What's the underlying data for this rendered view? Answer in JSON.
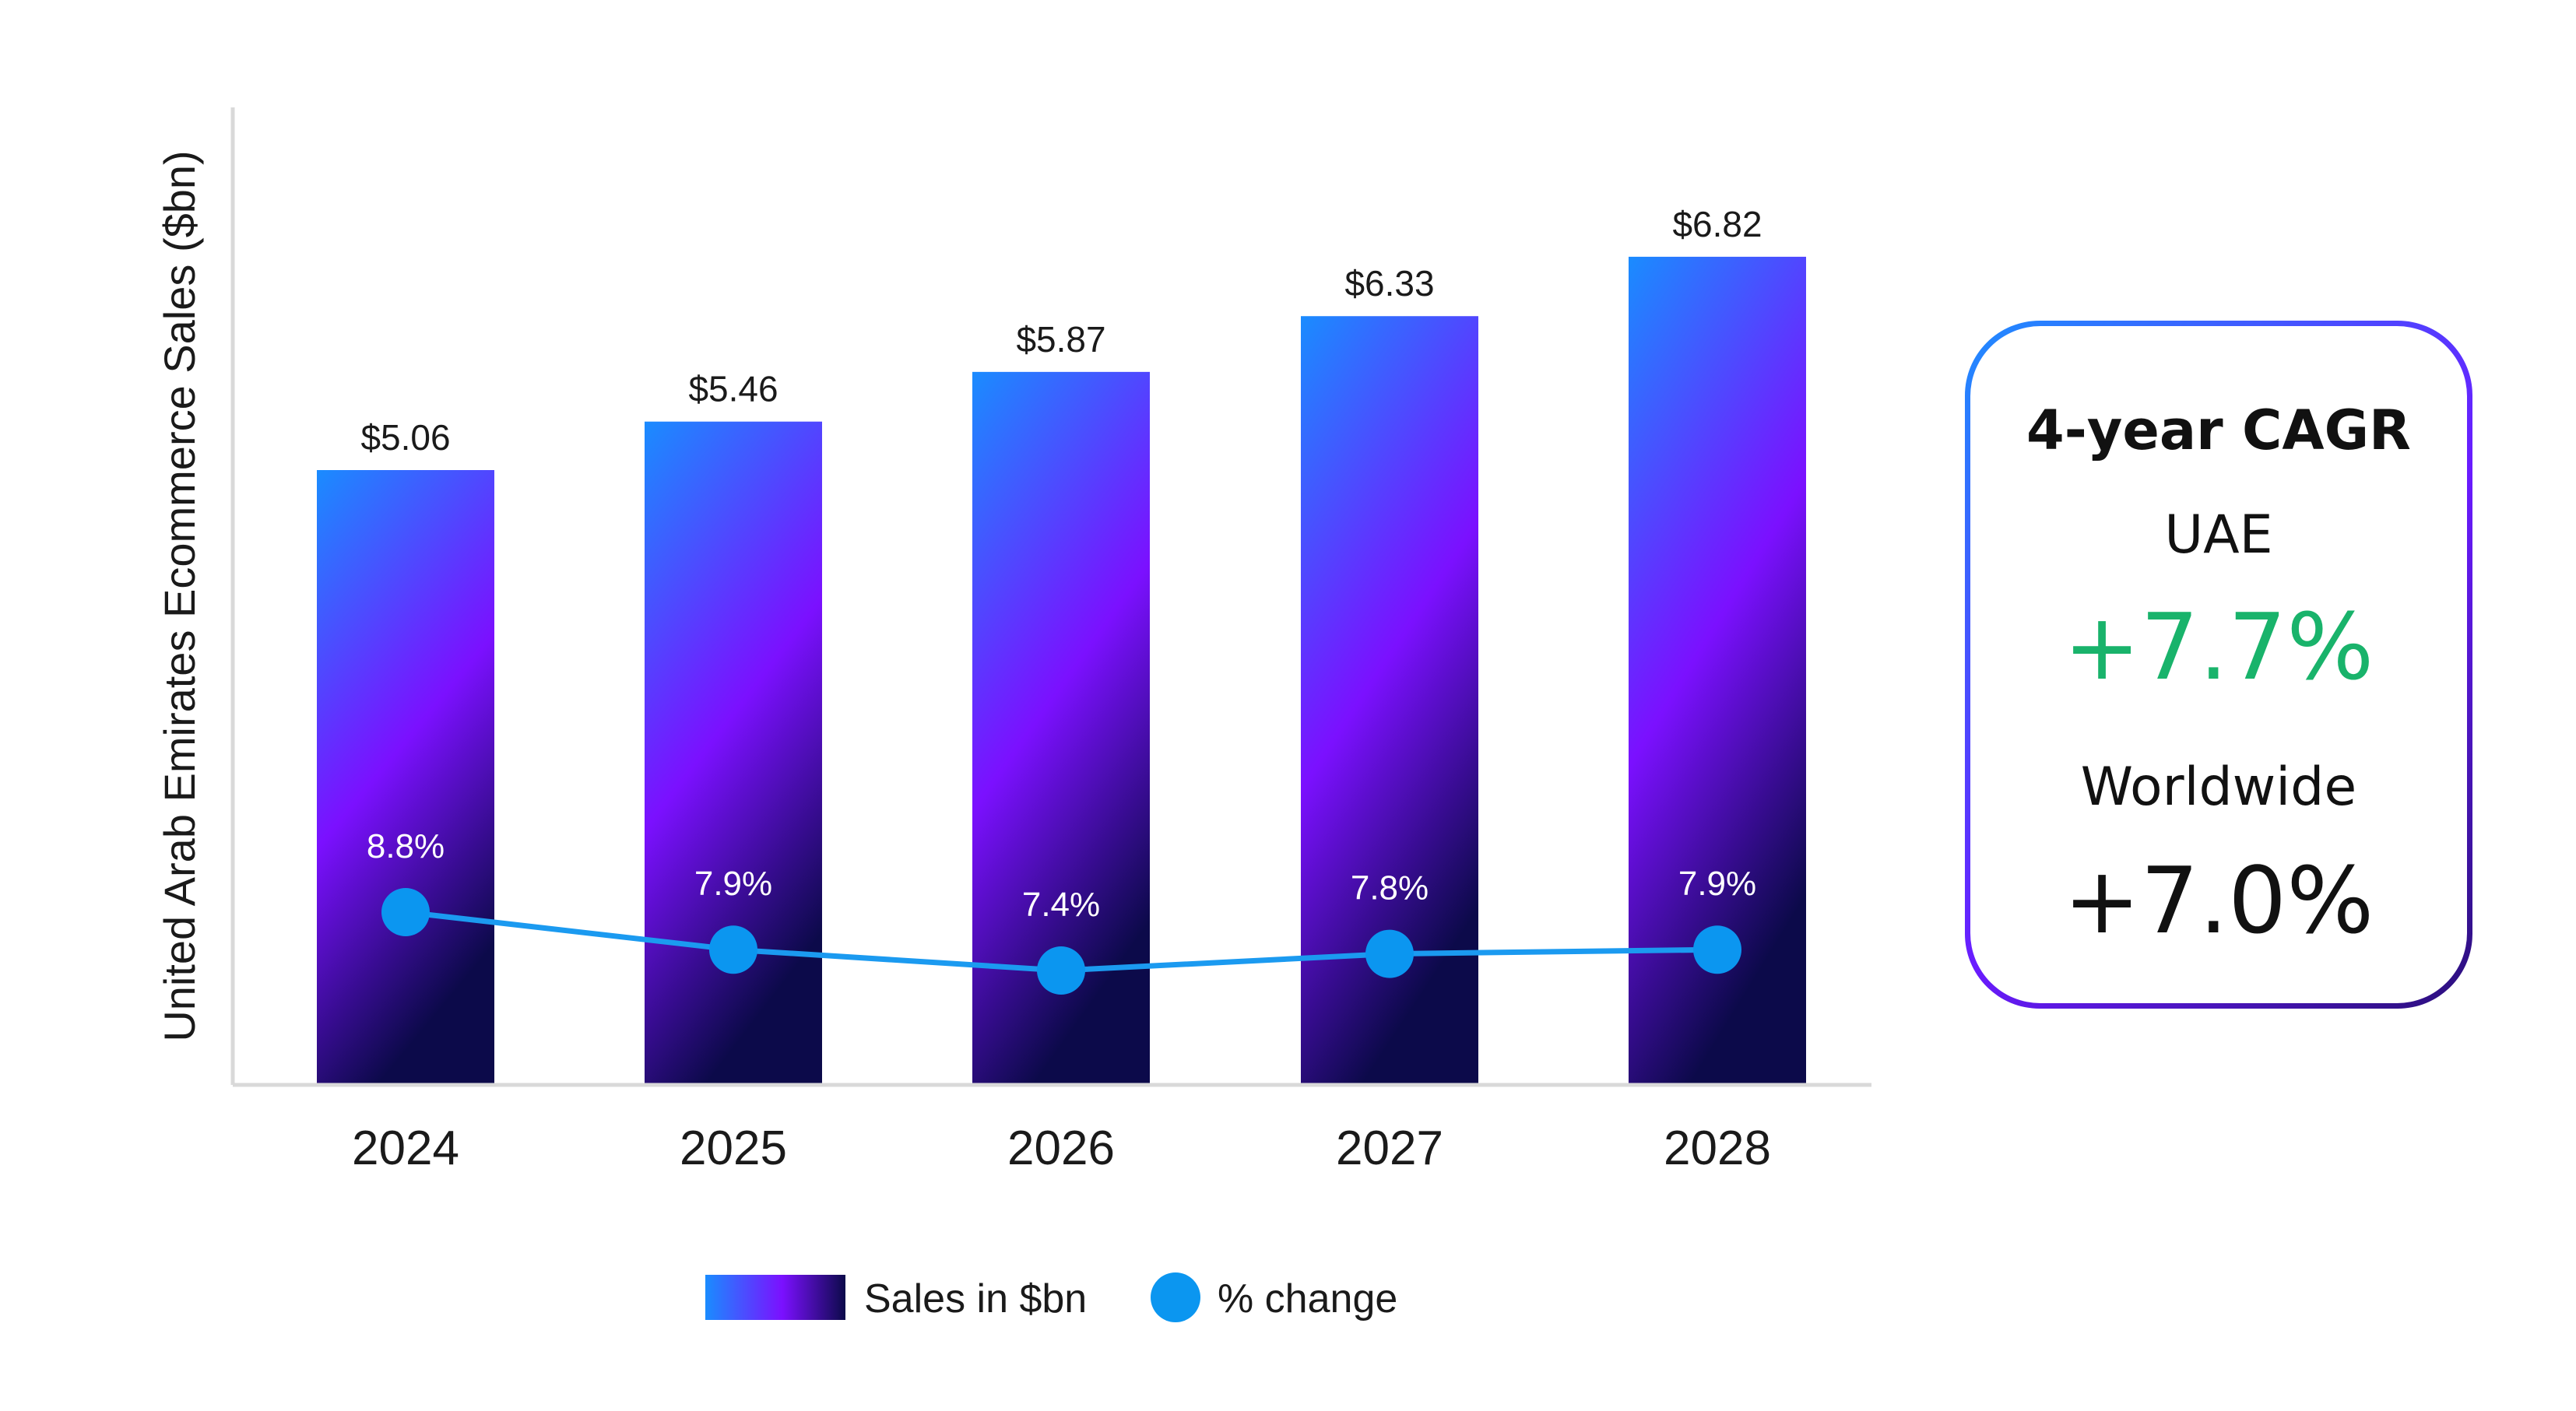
{
  "chart_data": {
    "type": "bar",
    "categories": [
      "2024",
      "2025",
      "2026",
      "2027",
      "2028"
    ],
    "series": [
      {
        "name": "Sales in $bn",
        "type": "bar",
        "values": [
          5.06,
          5.46,
          5.87,
          6.33,
          6.82
        ],
        "labels": [
          "$5.06",
          "$5.46",
          "$5.87",
          "$6.33",
          "$6.82"
        ]
      },
      {
        "name": "% change",
        "type": "line",
        "values": [
          8.8,
          7.9,
          7.4,
          7.8,
          7.9
        ],
        "labels": [
          "8.8%",
          "7.9%",
          "7.4%",
          "7.8%",
          "7.9%"
        ]
      }
    ],
    "ylabel": "United Arab Emirates Ecommerce Sales ($bn)",
    "ylim": [
      0,
      8
    ],
    "grid": false,
    "legend_position": "bottom-center",
    "colors": {
      "bar_gradient_top": "#1a8cff",
      "bar_gradient_mid": "#7b10ff",
      "bar_gradient_bottom": "#0c0a4a",
      "line": "#1b9af0",
      "marker": "#0b96f0"
    }
  },
  "cagr": {
    "title": "4-year CAGR",
    "uae_label": "UAE",
    "uae_value": "+7.7%",
    "worldwide_label": "Worldwide",
    "worldwide_value": "+7.0%",
    "uae_color": "#19b36b"
  }
}
